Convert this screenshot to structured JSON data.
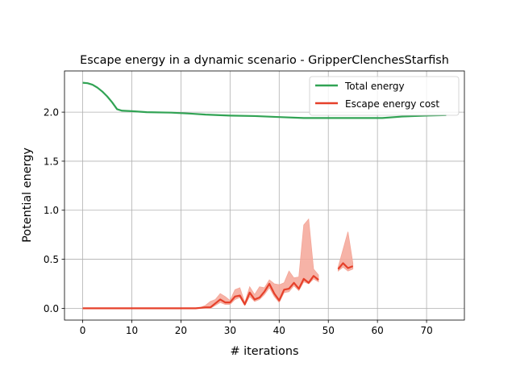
{
  "chart_data": {
    "type": "line",
    "title": "Escape energy in a dynamic scenario - GripperClenchesStarfish",
    "xlabel": "# iterations",
    "ylabel": "Potential energy",
    "xlim": [
      -3.7,
      77.7
    ],
    "ylim": [
      -0.12,
      2.42
    ],
    "x_ticks": [
      0,
      10,
      20,
      30,
      40,
      50,
      60,
      70
    ],
    "y_ticks": [
      0.0,
      0.5,
      1.0,
      1.5,
      2.0
    ],
    "x_tick_labels": [
      "0",
      "10",
      "20",
      "30",
      "40",
      "50",
      "60",
      "70"
    ],
    "y_tick_labels": [
      "0.0",
      "0.5",
      "1.0",
      "1.5",
      "2.0"
    ],
    "grid": true,
    "legend_position": "upper right",
    "series": [
      {
        "name": "Total energy",
        "color": "#31a354",
        "x": [
          0,
          1,
          2,
          3,
          4,
          5,
          6,
          7,
          8,
          10,
          13,
          18,
          22,
          25,
          30,
          35,
          40,
          45,
          50,
          55,
          61,
          65,
          70,
          74
        ],
        "values": [
          2.3,
          2.295,
          2.28,
          2.25,
          2.21,
          2.16,
          2.1,
          2.03,
          2.015,
          2.01,
          2.0,
          1.995,
          1.985,
          1.975,
          1.965,
          1.96,
          1.95,
          1.94,
          1.94,
          1.94,
          1.94,
          1.955,
          1.965,
          1.97
        ]
      },
      {
        "name": "Escape energy cost",
        "color": "#e6402a",
        "band_color": "#f4a698",
        "segments": [
          {
            "x": [
              0,
              5,
              10,
              15,
              20,
              23,
              24,
              25,
              26,
              27,
              28,
              29,
              30,
              31,
              32,
              33,
              34,
              35,
              36,
              37,
              38,
              39,
              40,
              41,
              42,
              43,
              44,
              45,
              46,
              47,
              48
            ],
            "values": [
              0.0,
              0.0,
              0.0,
              0.0,
              0.0,
              0.0,
              0.005,
              0.01,
              0.01,
              0.05,
              0.09,
              0.06,
              0.06,
              0.12,
              0.13,
              0.04,
              0.16,
              0.09,
              0.11,
              0.17,
              0.25,
              0.15,
              0.08,
              0.19,
              0.2,
              0.26,
              0.2,
              0.3,
              0.26,
              0.33,
              0.29
            ],
            "lower": [
              0.0,
              0.0,
              0.0,
              0.0,
              0.0,
              0.0,
              0.0,
              0.0,
              0.0,
              0.03,
              0.06,
              0.04,
              0.04,
              0.09,
              0.11,
              0.03,
              0.12,
              0.07,
              0.09,
              0.14,
              0.21,
              0.12,
              0.06,
              0.16,
              0.17,
              0.23,
              0.18,
              0.27,
              0.25,
              0.3,
              0.27
            ],
            "upper": [
              0.0,
              0.0,
              0.0,
              0.0,
              0.0,
              0.0,
              0.01,
              0.03,
              0.07,
              0.09,
              0.15,
              0.12,
              0.08,
              0.19,
              0.21,
              0.06,
              0.22,
              0.14,
              0.22,
              0.21,
              0.29,
              0.25,
              0.24,
              0.26,
              0.38,
              0.31,
              0.32,
              0.85,
              0.91,
              0.4,
              0.34
            ]
          },
          {
            "x": [
              52,
              53,
              54,
              55
            ],
            "values": [
              0.4,
              0.46,
              0.41,
              0.43
            ],
            "lower": [
              0.38,
              0.42,
              0.38,
              0.4
            ],
            "upper": [
              0.42,
              0.6,
              0.78,
              0.46
            ]
          }
        ]
      }
    ]
  }
}
